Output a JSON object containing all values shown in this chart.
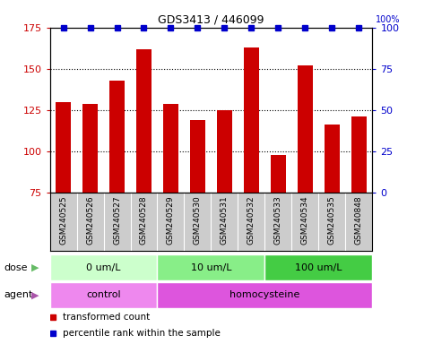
{
  "title": "GDS3413 / 446099",
  "samples": [
    "GSM240525",
    "GSM240526",
    "GSM240527",
    "GSM240528",
    "GSM240529",
    "GSM240530",
    "GSM240531",
    "GSM240532",
    "GSM240533",
    "GSM240534",
    "GSM240535",
    "GSM240848"
  ],
  "bar_values": [
    130,
    129,
    143,
    162,
    129,
    119,
    125,
    163,
    98,
    152,
    116,
    121
  ],
  "percentile_values": [
    100,
    100,
    100,
    100,
    100,
    100,
    100,
    100,
    100,
    100,
    100,
    100
  ],
  "bar_color": "#cc0000",
  "dot_color": "#0000cc",
  "ylim_left": [
    75,
    175
  ],
  "ylim_right": [
    0,
    100
  ],
  "yticks_left": [
    75,
    100,
    125,
    150,
    175
  ],
  "yticks_right": [
    0,
    25,
    50,
    75,
    100
  ],
  "grid_lines": [
    100,
    125,
    150
  ],
  "dose_groups": [
    {
      "label": "0 um/L",
      "start": 0,
      "end": 4,
      "color": "#ccffcc"
    },
    {
      "label": "10 um/L",
      "start": 4,
      "end": 8,
      "color": "#88ee88"
    },
    {
      "label": "100 um/L",
      "start": 8,
      "end": 12,
      "color": "#44cc44"
    }
  ],
  "agent_groups": [
    {
      "label": "control",
      "start": 0,
      "end": 4,
      "color": "#ee88ee"
    },
    {
      "label": "homocysteine",
      "start": 4,
      "end": 12,
      "color": "#dd55dd"
    }
  ],
  "legend_items": [
    {
      "label": "transformed count",
      "color": "#cc0000"
    },
    {
      "label": "percentile rank within the sample",
      "color": "#0000cc"
    }
  ],
  "background_color": "#ffffff",
  "bar_width": 0.55,
  "label_row_color": "#cccccc",
  "label_cell_edge_color": "#aaaaaa",
  "dose_arrow_color": "#66bb66",
  "agent_arrow_color": "#aa55aa"
}
